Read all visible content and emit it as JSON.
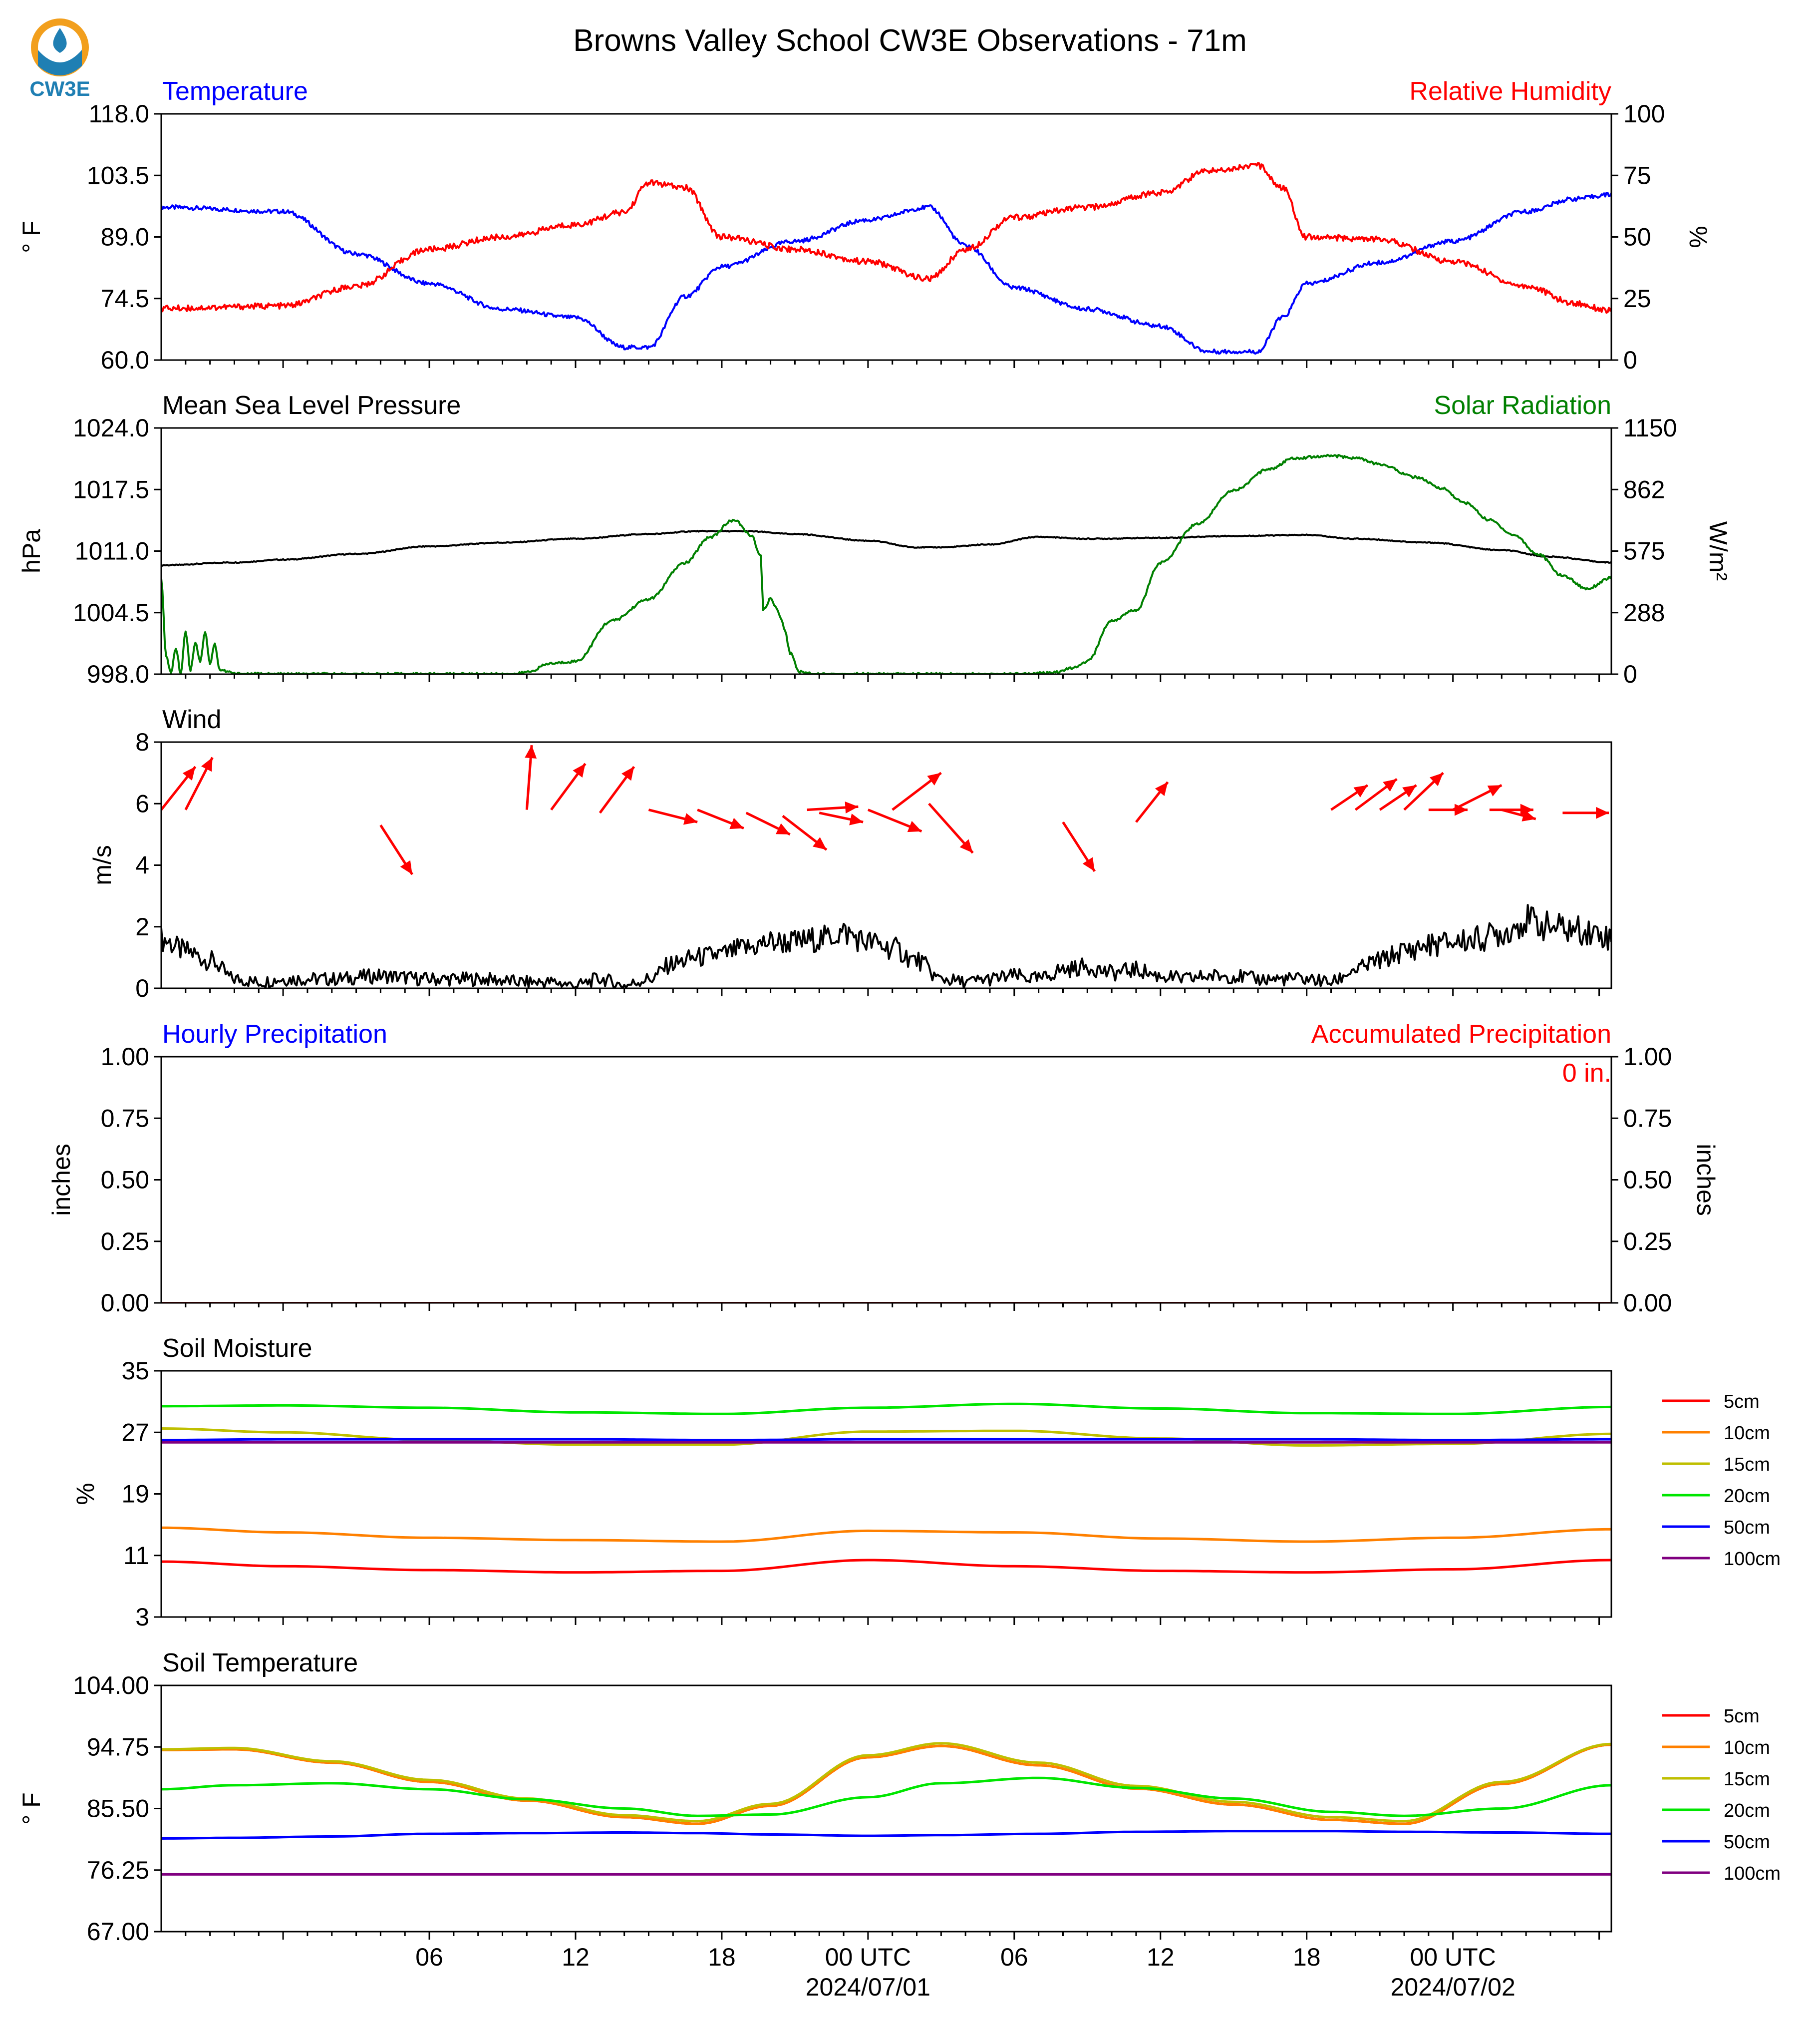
{
  "figure": {
    "title": "Browns Valley School CW3E Observations - 71m",
    "logo_text": "CW3E",
    "x_tick_labels": [
      "06",
      "12",
      "18",
      "00 UTC",
      "06",
      "12",
      "18",
      "00 UTC"
    ],
    "x_date_labels": [
      "2024/07/01",
      "2024/07/02"
    ]
  },
  "chart_data": [
    {
      "type": "line",
      "title_left": "Temperature",
      "title_right": "Relative Humidity",
      "ylabel_left": "° F",
      "ylabel_right": "%",
      "ylim_left": [
        60,
        118
      ],
      "ylim_right": [
        0,
        100
      ],
      "yticks_left": [
        "60.0",
        "74.5",
        "89.0",
        "103.5",
        "118.0"
      ],
      "yticks_right": [
        "0",
        "25",
        "50",
        "75",
        "100"
      ],
      "x_hours": [
        -5,
        0,
        3,
        6,
        9,
        12,
        14,
        15,
        16.5,
        18,
        21,
        24,
        26.5,
        28,
        30,
        33,
        36,
        38,
        40,
        41,
        42,
        45,
        48,
        51,
        53,
        54.5
      ],
      "series": [
        {
          "color": "#0000ff",
          "axis": "left",
          "values": [
            96,
            95,
            85,
            78,
            72,
            70,
            63,
            63,
            75,
            82,
            88,
            93,
            96,
            87,
            77,
            72,
            68,
            62,
            62,
            70,
            78,
            83,
            88,
            95,
            98,
            99
          ]
        },
        {
          "color": "#ff0000",
          "axis": "right",
          "values": [
            21,
            22,
            30,
            45,
            50,
            55,
            60,
            72,
            70,
            50,
            45,
            40,
            33,
            45,
            58,
            62,
            68,
            77,
            79,
            70,
            50,
            49,
            40,
            30,
            23,
            20
          ]
        }
      ]
    },
    {
      "type": "line",
      "title_left": "Mean Sea Level Pressure",
      "title_right": "Solar Radiation",
      "ylabel_left": "hPa",
      "ylabel_right": "W/m²",
      "ylim_left": [
        998,
        1024
      ],
      "ylim_right": [
        0,
        1150
      ],
      "yticks_left": [
        "998.0",
        "1004.5",
        "1011.0",
        "1017.5",
        "1024.0"
      ],
      "yticks_right": [
        "0",
        "288",
        "575",
        "862",
        "1150"
      ],
      "series": [
        {
          "color": "#000000",
          "axis": "left",
          "x_hours": [
            -5,
            -2,
            0,
            3,
            6,
            9,
            12,
            15,
            17,
            19,
            21,
            24,
            26,
            27,
            29,
            31,
            33,
            36,
            39,
            42,
            44,
            47,
            50,
            52,
            54.5
          ],
          "values": [
            1009.5,
            1009.8,
            1010.1,
            1010.7,
            1011.5,
            1011.9,
            1012.3,
            1012.8,
            1013.1,
            1013.1,
            1012.8,
            1012.1,
            1011.4,
            1011.4,
            1011.7,
            1012.5,
            1012.3,
            1012.4,
            1012.6,
            1012.7,
            1012.3,
            1011.9,
            1011.1,
            1010.4,
            1009.8
          ]
        },
        {
          "color": "#008000",
          "axis": "right",
          "x_hours": [
            -5,
            -4.8,
            -4.6,
            -4.4,
            -4.2,
            -4,
            -3.8,
            -3.6,
            -3.4,
            -3.2,
            -3,
            -2.8,
            -2.6,
            -2.2,
            -2,
            0,
            3,
            6,
            8,
            9,
            9.5,
            10,
            11,
            12,
            13.5,
            15,
            16.5,
            17.5,
            18.5,
            19.2,
            19.6,
            19.7,
            20,
            20.2,
            20.4,
            20.6,
            20.8,
            21.2,
            22,
            25,
            30,
            31.5,
            32.5,
            33,
            34,
            35,
            36,
            37.5,
            39,
            40.5,
            41.5,
            43,
            44,
            45,
            46.5,
            47.5,
            48.5,
            49.5,
            50.5,
            51.5,
            52.5,
            53.5,
            54.5
          ],
          "values": [
            450,
            80,
            10,
            120,
            5,
            200,
            20,
            150,
            60,
            200,
            50,
            140,
            20,
            10,
            2,
            0,
            0,
            0,
            0,
            0,
            0,
            10,
            50,
            60,
            250,
            350,
            520,
            640,
            720,
            650,
            550,
            300,
            350,
            320,
            270,
            200,
            100,
            10,
            0,
            0,
            0,
            5,
            30,
            60,
            250,
            300,
            520,
            700,
            860,
            960,
            1010,
            1020,
            1010,
            980,
            920,
            870,
            800,
            720,
            650,
            560,
            460,
            400,
            450
          ]
        }
      ]
    },
    {
      "type": "line",
      "title_left": "Wind",
      "ylabel_left": "m/s",
      "ylim_left": [
        0,
        8
      ],
      "yticks_left": [
        "0",
        "2",
        "4",
        "6",
        "8"
      ],
      "x_hours": [
        -5,
        -4,
        -3,
        -2,
        -1,
        0,
        2,
        4,
        6,
        8,
        10,
        11,
        12,
        13,
        14,
        15,
        16,
        17,
        18,
        19,
        20,
        21,
        22,
        23,
        24,
        25,
        26,
        27,
        28,
        29,
        30,
        31,
        32,
        33,
        34,
        35,
        36,
        37,
        38,
        39,
        40,
        41,
        42,
        43,
        44,
        45,
        46,
        47,
        48,
        49,
        50,
        51,
        52,
        53,
        54,
        54.5
      ],
      "series": [
        {
          "color": "#000000",
          "axis": "left",
          "values": [
            1.6,
            1.2,
            0.9,
            0.3,
            0.2,
            0.3,
            0.3,
            0.4,
            0.3,
            0.3,
            0.2,
            0.2,
            0.1,
            0.3,
            0.1,
            0.3,
            0.8,
            1.0,
            1.1,
            1.3,
            1.5,
            1.5,
            1.6,
            1.8,
            1.5,
            1.3,
            0.9,
            0.3,
            0.2,
            0.3,
            0.4,
            0.3,
            0.6,
            0.7,
            0.5,
            0.6,
            0.4,
            0.3,
            0.4,
            0.4,
            0.3,
            0.3,
            0.3,
            0.2,
            0.6,
            0.9,
            1.2,
            1.4,
            1.5,
            1.6,
            1.8,
            2.2,
            2.0,
            1.9,
            1.8,
            1.6
          ]
        }
      ],
      "arrows": {
        "color": "#ff0000",
        "x_hours": [
          -5,
          -4,
          4,
          10,
          11,
          13,
          15,
          17,
          19,
          20.5,
          21.5,
          22,
          24,
          25,
          26.5,
          32,
          35,
          43,
          44,
          45,
          46,
          47,
          48,
          49.5,
          50,
          52.5
        ],
        "y": [
          5.8,
          5.8,
          5.3,
          5.8,
          5.8,
          5.7,
          5.8,
          5.8,
          5.7,
          5.6,
          5.8,
          5.7,
          5.8,
          5.8,
          6.0,
          5.4,
          5.4,
          5.8,
          5.8,
          5.8,
          5.8,
          5.8,
          5.8,
          5.8,
          5.8,
          5.7
        ],
        "dx": [
          1.4,
          1.1,
          1.3,
          0.2,
          1.4,
          1.4,
          2.0,
          1.9,
          1.8,
          1.8,
          2.1,
          1.8,
          2.2,
          2.0,
          1.8,
          1.3,
          1.3,
          1.5,
          1.7,
          1.5,
          1.6,
          1.6,
          2.0,
          1.8,
          1.4,
          1.9
        ],
        "dy": [
          1.4,
          1.7,
          -1.6,
          2.1,
          1.5,
          1.5,
          -0.4,
          -0.6,
          -0.7,
          -1.1,
          0.1,
          -0.3,
          -0.7,
          1.2,
          -1.6,
          -1.6,
          1.3,
          0.8,
          1.0,
          0.8,
          1.2,
          0.0,
          0.8,
          0.0,
          -0.3,
          0.0
        ]
      }
    },
    {
      "type": "line",
      "title_left": "Hourly Precipitation",
      "title_right": "Accumulated Precipitation",
      "ylabel_left": "inches",
      "ylabel_right": "inches",
      "ylim_left": [
        0,
        1
      ],
      "ylim_right": [
        0,
        1
      ],
      "yticks_left": [
        "0.00",
        "0.25",
        "0.50",
        "0.75",
        "1.00"
      ],
      "yticks_right": [
        "0.00",
        "0.25",
        "0.50",
        "0.75",
        "1.00"
      ],
      "annotation": "0 in.",
      "x_hours": [
        -5,
        54.5
      ],
      "series": [
        {
          "color": "#ff0000",
          "axis": "left",
          "values": [
            0,
            0
          ]
        }
      ]
    },
    {
      "type": "line",
      "title_left": "Soil Moisture",
      "ylabel_left": "%",
      "ylim_left": [
        3,
        35
      ],
      "yticks_left": [
        "3",
        "11",
        "19",
        "27",
        "35"
      ],
      "x_hours": [
        -5,
        0,
        6,
        12,
        18,
        24,
        30,
        36,
        42,
        48,
        54.5
      ],
      "legend": [
        "5cm",
        "10cm",
        "15cm",
        "20cm",
        "50cm",
        "100cm"
      ],
      "series": [
        {
          "name": "5cm",
          "color": "#ff0000",
          "axis": "left",
          "values": [
            10.2,
            9.6,
            9.1,
            8.8,
            9.0,
            10.4,
            9.6,
            9.0,
            8.8,
            9.2,
            10.4
          ]
        },
        {
          "name": "10cm",
          "color": "#ff8000",
          "axis": "left",
          "values": [
            14.6,
            14.0,
            13.3,
            13.0,
            12.8,
            14.2,
            14.0,
            13.2,
            12.8,
            13.3,
            14.4
          ]
        },
        {
          "name": "15cm",
          "color": "#bfbf00",
          "axis": "left",
          "values": [
            27.5,
            27.0,
            26.0,
            25.4,
            25.4,
            27.1,
            27.2,
            26.2,
            25.3,
            25.5,
            26.8
          ]
        },
        {
          "name": "20cm",
          "color": "#00e600",
          "axis": "left",
          "values": [
            30.4,
            30.5,
            30.2,
            29.6,
            29.4,
            30.2,
            30.7,
            30.1,
            29.5,
            29.4,
            30.3
          ]
        },
        {
          "name": "50cm",
          "color": "#0000ff",
          "axis": "left",
          "values": [
            26.0,
            26.1,
            26.1,
            26.1,
            26.0,
            26.1,
            26.1,
            26.1,
            26.1,
            26.0,
            26.1
          ]
        },
        {
          "name": "100cm",
          "color": "#800080",
          "axis": "left",
          "values": [
            25.7,
            25.7,
            25.7,
            25.7,
            25.7,
            25.7,
            25.7,
            25.7,
            25.7,
            25.7,
            25.7
          ]
        }
      ]
    },
    {
      "type": "line",
      "title_left": "Soil Temperature",
      "ylabel_left": "° F",
      "ylim_left": [
        67,
        104
      ],
      "yticks_left": [
        "67.00",
        "76.25",
        "85.50",
        "94.75",
        "104.00"
      ],
      "x_hours": [
        -5,
        -2,
        2,
        6,
        10,
        14,
        17,
        20,
        24,
        27,
        31,
        35,
        39,
        43,
        46,
        50,
        54.5
      ],
      "legend": [
        "5cm",
        "10cm",
        "15cm",
        "20cm",
        "50cm",
        "100cm"
      ],
      "series": [
        {
          "name": "5cm",
          "color": "#ff0000",
          "axis": "left",
          "values": [
            94.3,
            94.4,
            92.4,
            89.5,
            86.7,
            84.2,
            83.2,
            85.9,
            93.2,
            94.9,
            92.0,
            88.5,
            86.1,
            83.8,
            83.2,
            89.2,
            95.1
          ]
        },
        {
          "name": "10cm",
          "color": "#ff8000",
          "axis": "left",
          "values": [
            94.3,
            94.4,
            92.4,
            89.5,
            86.7,
            84.2,
            83.2,
            85.9,
            93.2,
            94.9,
            92.0,
            88.5,
            86.1,
            83.8,
            83.2,
            89.2,
            95.1
          ]
        },
        {
          "name": "15cm",
          "color": "#bfbf00",
          "axis": "left",
          "values": [
            94.4,
            94.6,
            92.6,
            89.8,
            87.0,
            84.5,
            83.6,
            86.2,
            93.5,
            95.3,
            92.4,
            88.9,
            86.5,
            84.2,
            83.6,
            89.5,
            95.2
          ]
        },
        {
          "name": "20cm",
          "color": "#00e600",
          "axis": "left",
          "values": [
            88.4,
            89.0,
            89.3,
            88.4,
            86.9,
            85.5,
            84.4,
            84.6,
            87.2,
            89.3,
            90.1,
            88.6,
            87.0,
            85.0,
            84.4,
            85.5,
            89.0
          ]
        },
        {
          "name": "50cm",
          "color": "#0000ff",
          "axis": "left",
          "values": [
            81.0,
            81.1,
            81.3,
            81.7,
            81.8,
            81.9,
            81.8,
            81.6,
            81.4,
            81.5,
            81.7,
            82.0,
            82.1,
            82.1,
            82.0,
            81.9,
            81.7
          ]
        },
        {
          "name": "100cm",
          "color": "#800080",
          "axis": "left",
          "values": [
            75.6,
            75.6,
            75.6,
            75.6,
            75.6,
            75.6,
            75.6,
            75.6,
            75.6,
            75.6,
            75.6,
            75.6,
            75.6,
            75.6,
            75.6,
            75.6,
            75.6
          ]
        }
      ]
    }
  ]
}
